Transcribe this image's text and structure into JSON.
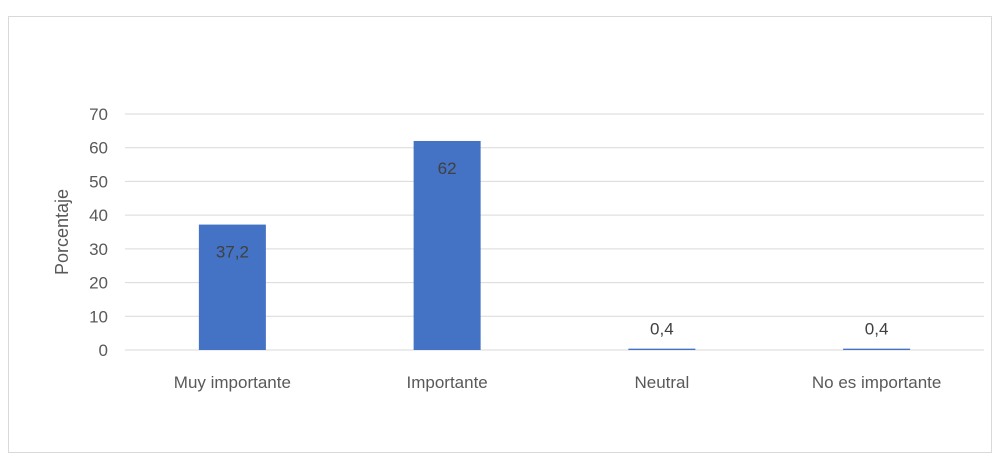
{
  "chart_data": {
    "type": "bar",
    "categories": [
      "Muy importante",
      "Importante",
      "Neutral",
      "No es importante"
    ],
    "values": [
      37.2,
      62,
      0.4,
      0.4
    ],
    "data_labels": [
      "37,2",
      "62",
      "0,4",
      "0,4"
    ],
    "title": "",
    "xlabel": "",
    "ylabel": "Porcentaje",
    "ylim": [
      0,
      70
    ],
    "yticks": [
      0,
      10,
      20,
      30,
      40,
      50,
      60,
      70
    ],
    "grid": true,
    "legend": "none",
    "bar_color": "#4472c4",
    "grid_color": "#d9d9d9"
  }
}
